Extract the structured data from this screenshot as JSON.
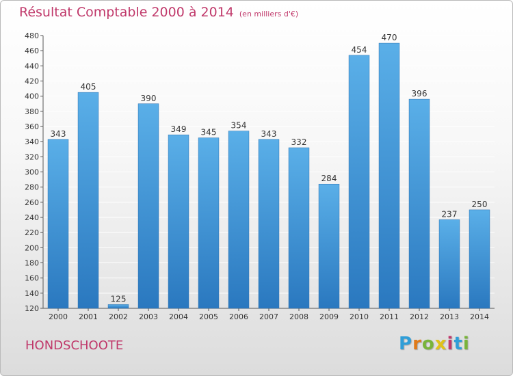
{
  "title": "Résultat Comptable 2000 à 2014",
  "unit_label": "(en milliers d'€)",
  "commune": "HONDSCHOOTE",
  "logo": {
    "letters": [
      "P",
      "r",
      "o",
      "x",
      "i",
      "t",
      "i"
    ],
    "colors": [
      "#2f9ed8",
      "#e07b1a",
      "#79b43a",
      "#e0c21a",
      "#c0386a",
      "#2f9ed8",
      "#79b43a"
    ]
  },
  "colors": {
    "title": "#c0386a",
    "bar_top": "#5aafe8",
    "bar_bottom": "#2a78bf",
    "grid": "#ffffff",
    "axis": "#555555"
  },
  "chart_data": {
    "type": "bar",
    "categories": [
      "2000",
      "2001",
      "2002",
      "2003",
      "2004",
      "2005",
      "2006",
      "2007",
      "2008",
      "2009",
      "2010",
      "2011",
      "2012",
      "2013",
      "2014"
    ],
    "values": [
      343,
      405,
      125,
      390,
      349,
      345,
      354,
      343,
      332,
      284,
      454,
      470,
      396,
      237,
      250
    ],
    "ylim": [
      120,
      480
    ],
    "yticks": [
      120,
      140,
      160,
      180,
      200,
      220,
      240,
      260,
      280,
      300,
      320,
      340,
      360,
      380,
      400,
      420,
      440,
      460,
      480
    ],
    "grid": true
  }
}
